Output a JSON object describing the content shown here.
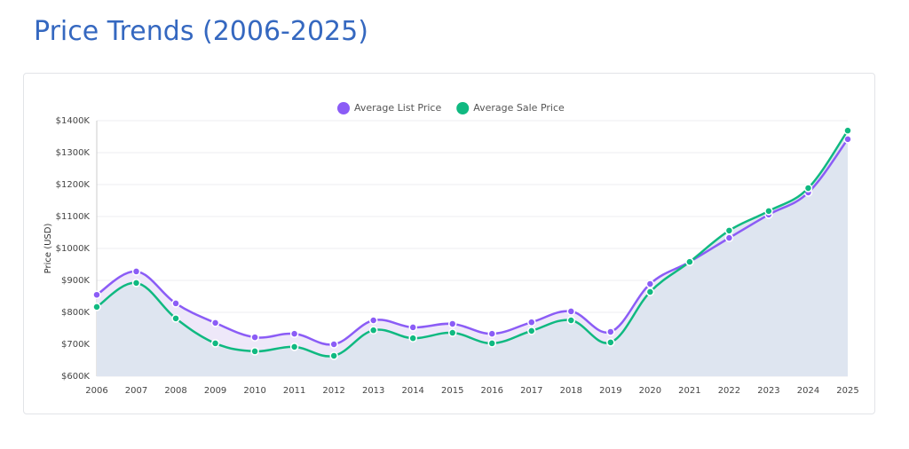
{
  "chart_data": {
    "type": "line",
    "title": "Price Trends (2006-2025)",
    "y_label": "Price (USD)",
    "categories": [
      "2006",
      "2007",
      "2008",
      "2009",
      "2010",
      "2011",
      "2012",
      "2013",
      "2014",
      "2015",
      "2016",
      "2017",
      "2018",
      "2019",
      "2020",
      "2021",
      "2022",
      "2023",
      "2024",
      "2025"
    ],
    "series": [
      {
        "name": "Average List Price",
        "color": "#8b5cf6",
        "fill": "#ece5f8",
        "values": [
          855000,
          928000,
          828000,
          767000,
          722000,
          733000,
          700000,
          775000,
          753000,
          764000,
          733000,
          769000,
          803000,
          739000,
          889000,
          958000,
          1033000,
          1106000,
          1175000,
          1342000
        ]
      },
      {
        "name": "Average Sale Price",
        "color": "#10b981",
        "fill": "#dbe4ee",
        "values": [
          817000,
          892000,
          781000,
          703000,
          678000,
          692000,
          664000,
          744000,
          719000,
          736000,
          703000,
          742000,
          775000,
          706000,
          864000,
          958000,
          1056000,
          1117000,
          1189000,
          1369000
        ]
      }
    ],
    "ylim": [
      600000,
      1400000
    ],
    "yticks": [
      {
        "value": 600000,
        "label": "$600K"
      },
      {
        "value": 700000,
        "label": "$700K"
      },
      {
        "value": 800000,
        "label": "$800K"
      },
      {
        "value": 900000,
        "label": "$900K"
      },
      {
        "value": 1000000,
        "label": "$1000K"
      },
      {
        "value": 1100000,
        "label": "$1100K"
      },
      {
        "value": 1200000,
        "label": "$1200K"
      },
      {
        "value": 1300000,
        "label": "$1300K"
      },
      {
        "value": 1400000,
        "label": "$1400K"
      }
    ],
    "grid": true,
    "legend": "top"
  }
}
